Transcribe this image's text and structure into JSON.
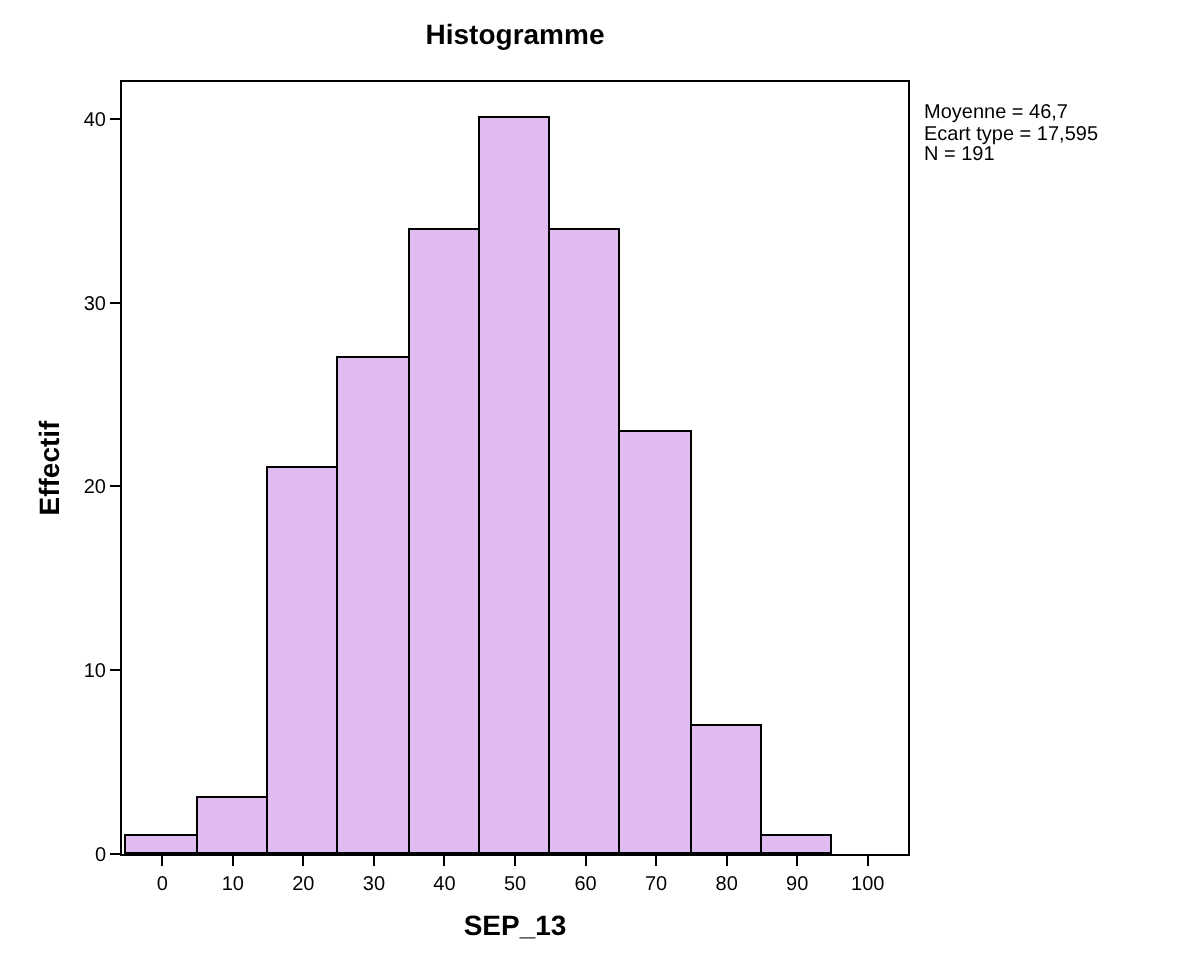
{
  "chart_data": {
    "type": "histogram",
    "title": "Histogramme",
    "xlabel": "SEP_13",
    "ylabel": "Effectif",
    "bins": [
      -5,
      5,
      15,
      25,
      35,
      45,
      55,
      65,
      75,
      85,
      95
    ],
    "values": [
      1,
      3,
      21,
      27,
      34,
      40,
      34,
      23,
      7,
      1
    ],
    "color": "#dfbbf2",
    "xlim": [
      -5.7,
      105.7
    ],
    "xticks": [
      0,
      10,
      20,
      30,
      40,
      50,
      60,
      70,
      80,
      90,
      100
    ],
    "ylim": [
      0,
      42
    ],
    "yticks": [
      0,
      10,
      20,
      30,
      40
    ],
    "grid": false,
    "legend": false,
    "annotations": [
      "Moyenne = 46,7",
      "Ecart type = 17,595",
      "N = 191"
    ]
  }
}
